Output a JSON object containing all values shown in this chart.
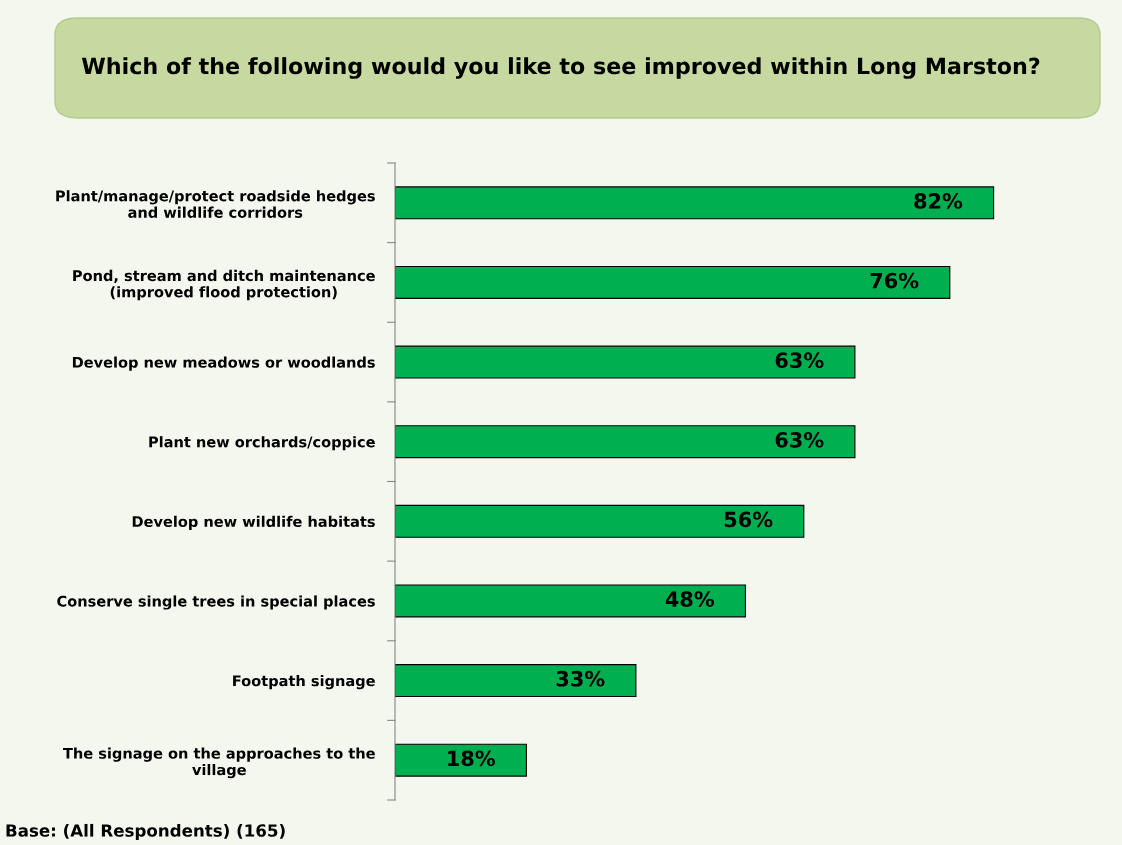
{
  "chart_data": {
    "type": "bar",
    "orientation": "horizontal",
    "title": "Which of the following would you like to see improved within Long Marston?",
    "categories": [
      "Plant/manage/protect roadside hedges\nand wildlife corridors",
      "Pond, stream and ditch maintenance\n(improved flood protection)",
      "Develop new meadows or woodlands",
      "Plant new orchards/coppice",
      "Develop new wildlife habitats",
      "Conserve single trees in special places",
      "Footpath signage",
      "The signage on the approaches to the\nvillage"
    ],
    "values": [
      82,
      76,
      63,
      63,
      56,
      48,
      33,
      18
    ],
    "value_labels": [
      "82%",
      "76%",
      "63%",
      "63%",
      "56%",
      "48%",
      "33%",
      "18%"
    ],
    "color": "#00b050",
    "xlim": [
      0,
      100
    ],
    "tick_labels": "y",
    "grid": false,
    "legend": false,
    "annotations": [
      "Base: (All Respondents) (165)"
    ]
  }
}
